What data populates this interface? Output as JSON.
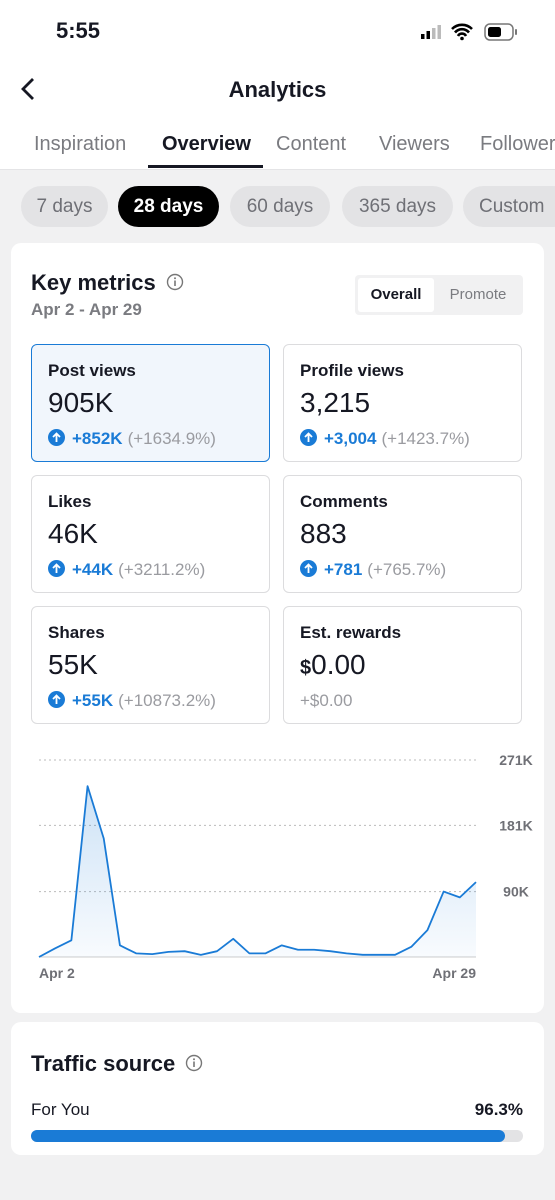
{
  "status_bar": {
    "time": "5:55"
  },
  "header": {
    "title": "Analytics"
  },
  "tabs": [
    "Inspiration",
    "Overview",
    "Content",
    "Viewers",
    "Followers"
  ],
  "range_chips": [
    "7 days",
    "28 days",
    "60 days",
    "365 days",
    "Custom"
  ],
  "key_metrics": {
    "title": "Key metrics",
    "date_range": "Apr 2 - Apr 29",
    "toggle": [
      "Overall",
      "Promote"
    ],
    "cards": [
      {
        "label": "Post views",
        "value": "905K",
        "change": "+852K",
        "percent": "(+1634.9%)"
      },
      {
        "label": "Profile views",
        "value": "3,215",
        "change": "+3,004",
        "percent": "(+1423.7%)"
      },
      {
        "label": "Likes",
        "value": "46K",
        "change": "+44K",
        "percent": "(+3211.2%)"
      },
      {
        "label": "Comments",
        "value": "883",
        "change": "+781",
        "percent": "(+765.7%)"
      },
      {
        "label": "Shares",
        "value": "55K",
        "change": "+55K",
        "percent": "(+10873.2%)"
      },
      {
        "label": "Est. rewards",
        "currency": "$",
        "amount": "0.00",
        "change": "+$0.00"
      }
    ]
  },
  "chart_data": {
    "type": "line",
    "categories": [
      "Apr 2",
      null,
      null,
      null,
      null,
      null,
      null,
      null,
      null,
      null,
      null,
      null,
      null,
      null,
      null,
      null,
      null,
      null,
      null,
      null,
      null,
      null,
      null,
      null,
      null,
      null,
      null,
      "Apr 29"
    ],
    "series": [
      {
        "name": "Post views",
        "color": "#1a7bd6",
        "values": [
          0,
          12000,
          23000,
          235000,
          163000,
          16000,
          5000,
          4000,
          7000,
          8000,
          3000,
          8000,
          25000,
          5000,
          5000,
          16000,
          10000,
          10000,
          8000,
          5000,
          3000,
          3000,
          3000,
          14000,
          37000,
          90000,
          82000,
          103000
        ]
      }
    ],
    "ylim": [
      0,
      271000
    ],
    "yticks": [
      {
        "value": 90000,
        "label": "90K"
      },
      {
        "value": 181000,
        "label": "181K"
      },
      {
        "value": 271000,
        "label": "271K"
      }
    ],
    "grid": true
  },
  "traffic_source": {
    "title": "Traffic source",
    "rows": [
      {
        "label": "For You",
        "value": 96.3,
        "value_label": "96.3%"
      }
    ]
  }
}
